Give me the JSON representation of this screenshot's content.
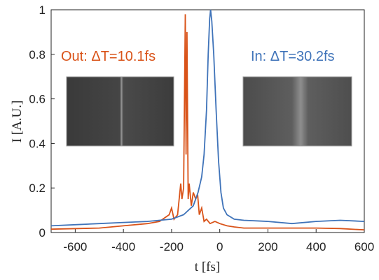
{
  "chart_data": {
    "type": "line",
    "xlabel": "t [fs]",
    "ylabel": "I [A.U.]",
    "xlim": [
      -700,
      600
    ],
    "xticks": [
      -600,
      -400,
      -200,
      0,
      200,
      400,
      600
    ],
    "ylim": [
      0,
      1
    ],
    "yticks": [
      0,
      0.2,
      0.4,
      0.6,
      0.8,
      1
    ],
    "series": [
      {
        "color": "#d95319",
        "x": [
          -700,
          -500,
          -400,
          -300,
          -250,
          -210,
          -200,
          -190,
          -175,
          -162,
          -157,
          -150,
          -143,
          -140,
          -136,
          -131,
          -127,
          -118,
          -110,
          -100,
          -92,
          -85,
          -75,
          -65,
          -55,
          -40,
          -20,
          0,
          30,
          60,
          100,
          200,
          300,
          400,
          500,
          600
        ],
        "values": [
          0.015,
          0.02,
          0.03,
          0.04,
          0.05,
          0.08,
          0.11,
          0.06,
          0.08,
          0.22,
          0.15,
          0.2,
          0.98,
          0.35,
          0.9,
          0.15,
          0.22,
          0.12,
          0.18,
          0.15,
          0.17,
          0.08,
          0.11,
          0.05,
          0.06,
          0.04,
          0.05,
          0.04,
          0.03,
          0.025,
          0.02,
          0.02,
          0.02,
          0.02,
          0.018,
          0.012
        ]
      },
      {
        "color": "#3f73b9",
        "x": [
          -700,
          -600,
          -500,
          -400,
          -300,
          -200,
          -150,
          -110,
          -90,
          -75,
          -65,
          -55,
          -48,
          -42,
          -38,
          -33,
          -25,
          -15,
          -5,
          5,
          15,
          30,
          60,
          100,
          200,
          300,
          400,
          500,
          600
        ],
        "values": [
          0.03,
          0.035,
          0.04,
          0.045,
          0.05,
          0.06,
          0.08,
          0.12,
          0.18,
          0.25,
          0.35,
          0.55,
          0.8,
          0.96,
          1.0,
          0.95,
          0.8,
          0.55,
          0.32,
          0.18,
          0.11,
          0.08,
          0.06,
          0.055,
          0.05,
          0.04,
          0.05,
          0.055,
          0.05
        ]
      }
    ],
    "annotations": [
      {
        "text": "Out: ΔT=10.1fs",
        "color": "#d95319"
      },
      {
        "text": "In: ΔT=30.2fs",
        "color": "#3f73b9"
      }
    ]
  }
}
